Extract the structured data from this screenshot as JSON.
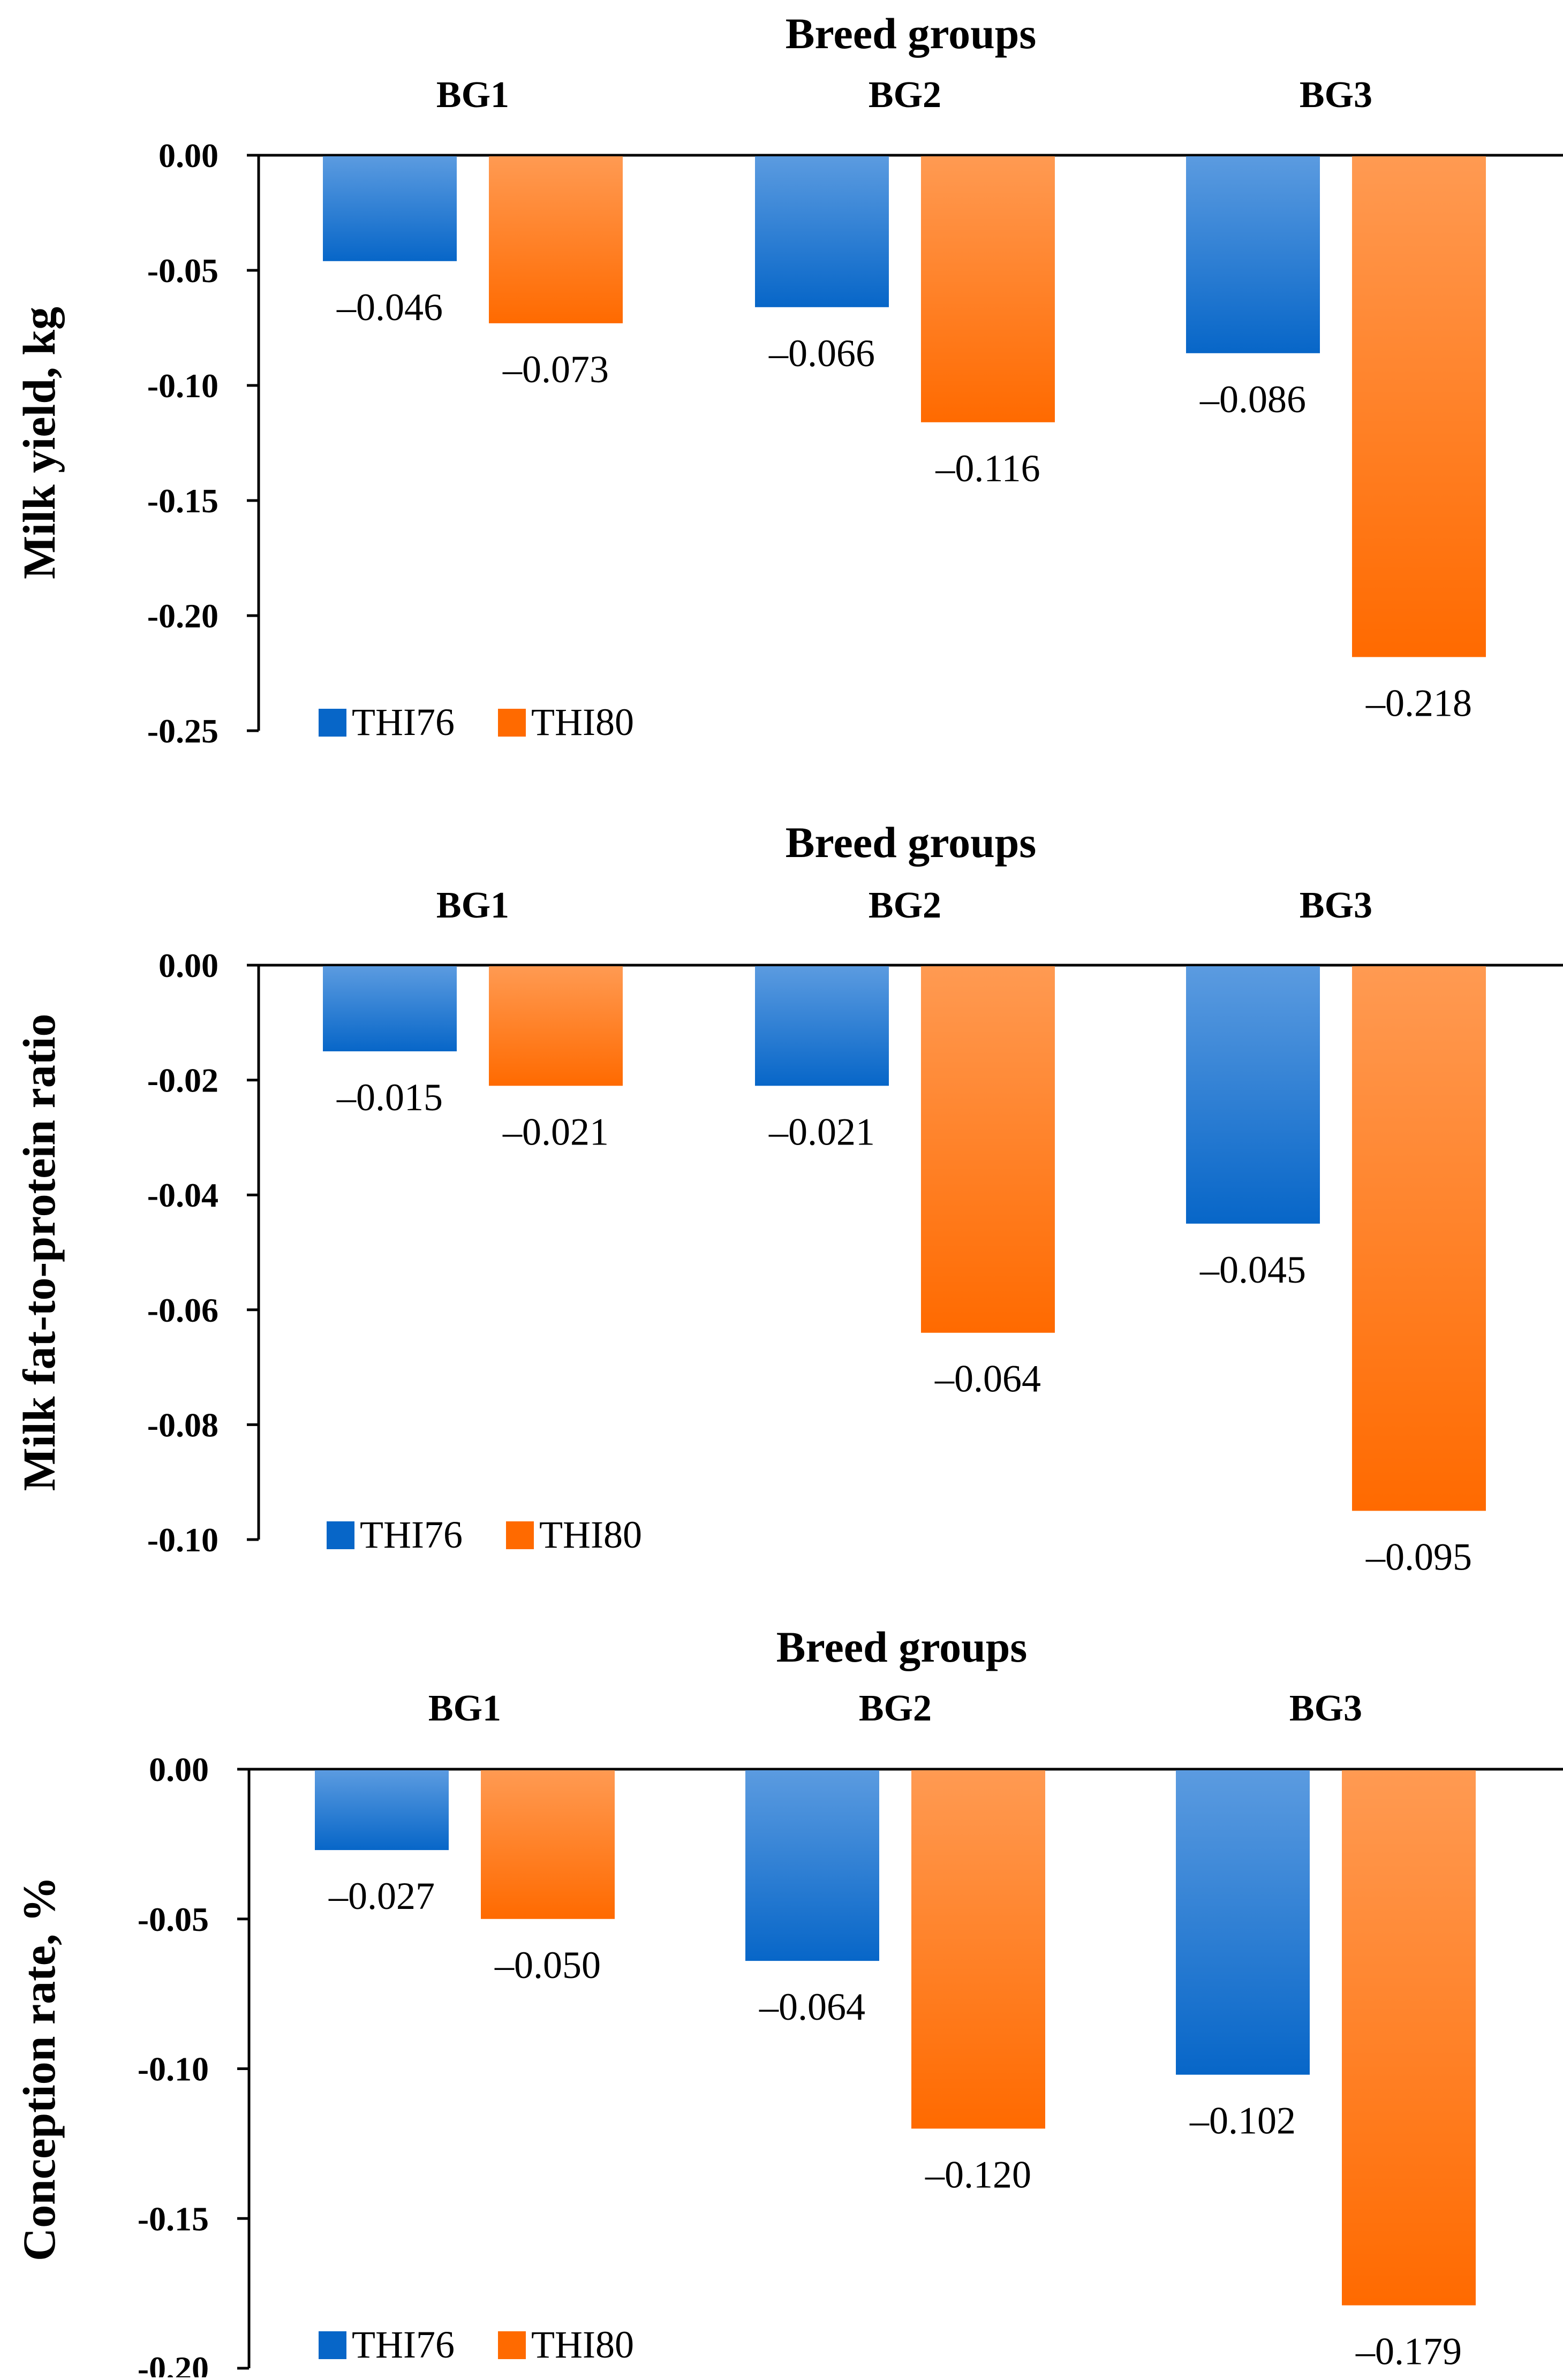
{
  "colors": {
    "THI76": {
      "light": "#5b9be0",
      "dark": "#0766c8"
    },
    "THI80": {
      "light": "#ff9a52",
      "dark": "#ff6a00"
    },
    "axis": "#000000"
  },
  "chart_data": [
    {
      "type": "bar",
      "title": "Breed groups",
      "ylabel": "Milk yield, kg",
      "categories": [
        "BG1",
        "BG2",
        "BG3"
      ],
      "series": [
        {
          "name": "THI76",
          "values": [
            -0.046,
            -0.066,
            -0.086
          ],
          "labels": [
            "–0.046",
            "–0.066",
            "–0.086"
          ]
        },
        {
          "name": "THI80",
          "values": [
            -0.073,
            -0.116,
            -0.218
          ],
          "labels": [
            "–0.073",
            "–0.116",
            "–0.218"
          ]
        }
      ],
      "ylim": [
        -0.25,
        0
      ],
      "yticks": [
        0,
        -0.05,
        -0.1,
        -0.15,
        -0.2,
        -0.25
      ],
      "ytick_labels": [
        "0.00",
        "-0.05",
        "-0.10",
        "-0.15",
        "-0.20",
        "-0.25"
      ],
      "legend": "bottom-left"
    },
    {
      "type": "bar",
      "title": "Breed groups",
      "ylabel": "Milk fat-to-protein ratio",
      "categories": [
        "BG1",
        "BG2",
        "BG3"
      ],
      "series": [
        {
          "name": "THI76",
          "values": [
            -0.015,
            -0.021,
            -0.045
          ],
          "labels": [
            "–0.015",
            "–0.021",
            "–0.045"
          ]
        },
        {
          "name": "THI80",
          "values": [
            -0.021,
            -0.064,
            -0.095
          ],
          "labels": [
            "–0.021",
            "–0.064",
            "–0.095"
          ]
        }
      ],
      "ylim": [
        -0.1,
        0
      ],
      "yticks": [
        0,
        -0.02,
        -0.04,
        -0.06,
        -0.08,
        -0.1
      ],
      "ytick_labels": [
        "0.00",
        "-0.02",
        "-0.04",
        "-0.06",
        "-0.08",
        "-0.10"
      ],
      "legend": "bottom-left"
    },
    {
      "type": "bar",
      "title": "Breed groups",
      "ylabel": "Conception rate, %",
      "categories": [
        "BG1",
        "BG2",
        "BG3"
      ],
      "series": [
        {
          "name": "THI76",
          "values": [
            -0.027,
            -0.064,
            -0.102
          ],
          "labels": [
            "–0.027",
            "–0.064",
            "–0.102"
          ]
        },
        {
          "name": "THI80",
          "values": [
            -0.05,
            -0.12,
            -0.179
          ],
          "labels": [
            "–0.050",
            "–0.120",
            "–0.179"
          ]
        }
      ],
      "ylim": [
        -0.2,
        0
      ],
      "yticks": [
        0,
        -0.05,
        -0.1,
        -0.15,
        -0.2
      ],
      "ytick_labels": [
        "0.00",
        "-0.05",
        "-0.10",
        "-0.15",
        "-0.20"
      ],
      "legend": "bottom-left"
    }
  ]
}
